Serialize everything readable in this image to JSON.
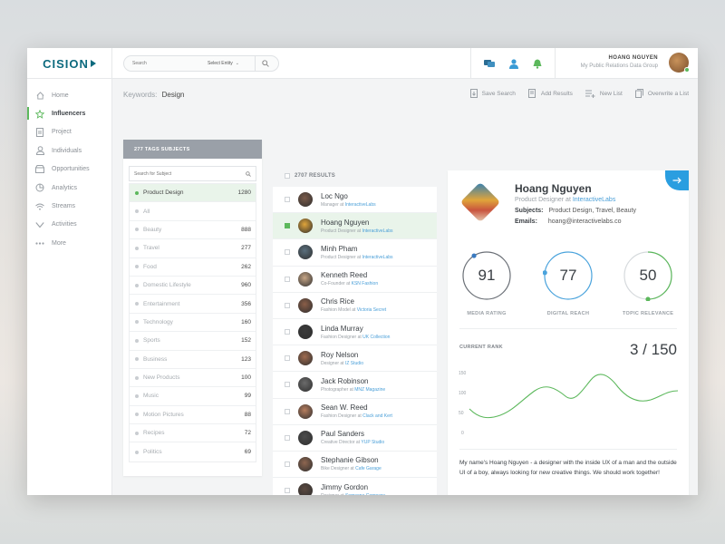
{
  "header": {
    "logo": "CISION",
    "search_placeholder": "Search",
    "entity_select": "Select Entity",
    "user_name": "HOANG NGUYEN",
    "user_org": "My Public Relations Data Group"
  },
  "sidebar": {
    "items": [
      {
        "label": "Home",
        "icon": "home-icon"
      },
      {
        "label": "Influencers",
        "icon": "star-icon"
      },
      {
        "label": "Project",
        "icon": "document-icon"
      },
      {
        "label": "Individuals",
        "icon": "person-icon"
      },
      {
        "label": "Opportunities",
        "icon": "box-icon"
      },
      {
        "label": "Analytics",
        "icon": "pie-chart-icon"
      },
      {
        "label": "Streams",
        "icon": "wifi-icon"
      },
      {
        "label": "Activities",
        "icon": "check-icon"
      },
      {
        "label": "More",
        "icon": "more-icon"
      }
    ]
  },
  "main": {
    "keywords_label": "Keywords:",
    "keywords_value": "Design",
    "actions": [
      "Save Search",
      "Add Results",
      "New List",
      "Overwrite a List"
    ]
  },
  "tags": {
    "header": "277 TAGS SUBJECTS",
    "search_placeholder": "Search for Subject",
    "items": [
      {
        "name": "Product Design",
        "count": "1280"
      },
      {
        "name": "All",
        "count": ""
      },
      {
        "name": "Beauty",
        "count": "888"
      },
      {
        "name": "Travel",
        "count": "277"
      },
      {
        "name": "Food",
        "count": "262"
      },
      {
        "name": "Domestic Lifestyle",
        "count": "960"
      },
      {
        "name": "Entertainment",
        "count": "356"
      },
      {
        "name": "Technology",
        "count": "160"
      },
      {
        "name": "Sports",
        "count": "152"
      },
      {
        "name": "Business",
        "count": "123"
      },
      {
        "name": "New Products",
        "count": "100"
      },
      {
        "name": "Music",
        "count": "99"
      },
      {
        "name": "Motion Pictures",
        "count": "88"
      },
      {
        "name": "Recipes",
        "count": "72"
      },
      {
        "name": "Politics",
        "count": "69"
      }
    ]
  },
  "results": {
    "count_label": "2707 RESULTS",
    "items": [
      {
        "name": "Loc Ngo",
        "role": "Manager",
        "company": "InteractiveLabs"
      },
      {
        "name": "Hoang Nguyen",
        "role": "Product Designer",
        "company": "InteractiveLabs"
      },
      {
        "name": "Minh Pham",
        "role": "Product Designer",
        "company": "InteractiveLabs"
      },
      {
        "name": "Kenneth Reed",
        "role": "Co-Founder",
        "company": "KSN Fashion"
      },
      {
        "name": "Chris Rice",
        "role": "Fashion Model",
        "company": "Victoria Secret"
      },
      {
        "name": "Linda Murray",
        "role": "Fashion Designer",
        "company": "UK Collection"
      },
      {
        "name": "Roy Nelson",
        "role": "Designer",
        "company": "IZ Studio"
      },
      {
        "name": "Jack Robinson",
        "role": "Photographer",
        "company": "MNZ Magazine"
      },
      {
        "name": "Sean W. Reed",
        "role": "Fashion Designer",
        "company": "Clack and Kert"
      },
      {
        "name": "Paul Sanders",
        "role": "Creative Director",
        "company": "YUP Studio"
      },
      {
        "name": "Stephanie Gibson",
        "role": "Bike Designer",
        "company": "Cafe Garage"
      },
      {
        "name": "Jimmy Gordon",
        "role": "Designer",
        "company": "Someone Company"
      }
    ]
  },
  "profile": {
    "name": "Hoang Nguyen",
    "role": "Product Designer",
    "at": "at",
    "company": "InteractiveLabs",
    "subjects_label": "Subjects:",
    "subjects": "Product Design, Travel, Beauty",
    "emails_label": "Emails:",
    "email": "hoang@interactivelabs.co",
    "gauges": [
      {
        "value": "91",
        "label": "MEDIA RATING",
        "fraction": 0.91
      },
      {
        "value": "77",
        "label": "DIGITAL REACH",
        "fraction": 0.77
      },
      {
        "value": "50",
        "label": "TOPIC RELEVANCE",
        "fraction": 0.5
      }
    ],
    "rank_label": "CURRENT RANK",
    "rank_value": "3 / 150",
    "chart_ticks": [
      "150",
      "100",
      "50",
      "0"
    ],
    "bio": "My name's Hoang Nguyen - a designer with the inside UX of a man and the outside UI of a boy, always looking for new creative things. We should work together!"
  },
  "colors": {
    "accent": "#5cb85c",
    "link": "#4a9fd8",
    "corner": "#2a9ee0",
    "brand": "#0d6a7e"
  }
}
